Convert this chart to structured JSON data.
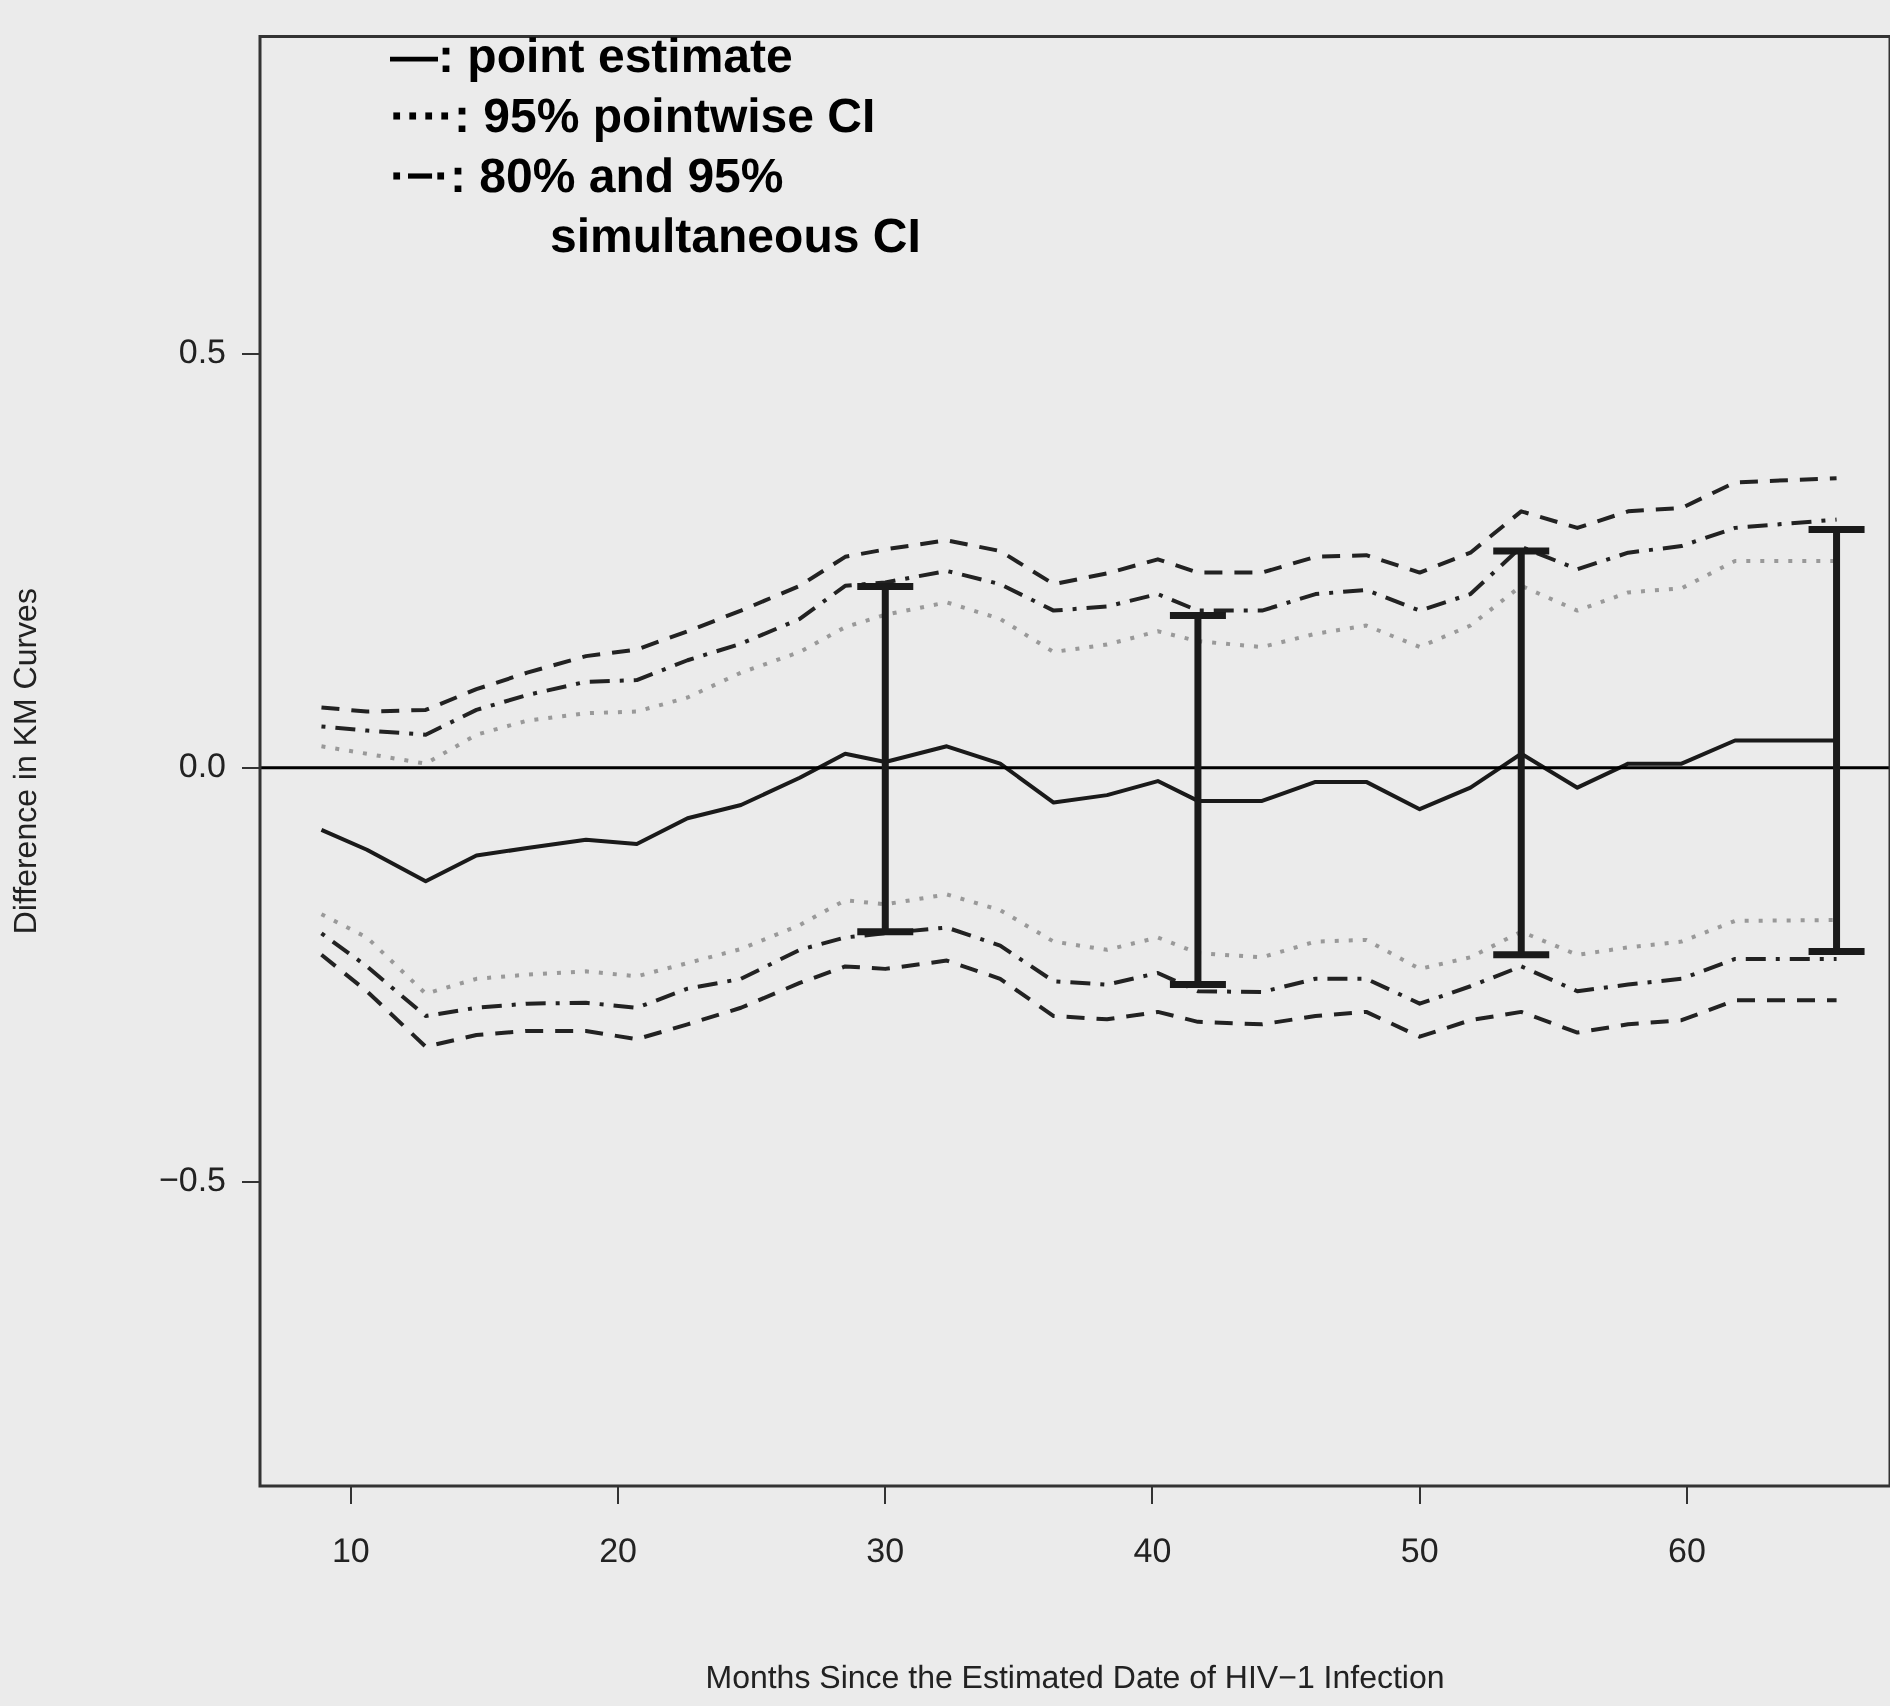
{
  "chart_data": {
    "type": "line",
    "xlabel": "Months Since the Estimated Date of HIV−1 Infection",
    "ylabel": "Difference in KM Curves",
    "x": [
      8.9,
      10.6,
      12.8,
      14.7,
      16.6,
      18.8,
      20.7,
      22.6,
      24.6,
      26.8,
      28.5,
      30.0,
      32.3,
      34.3,
      36.3,
      38.3,
      40.2,
      41.7,
      44.1,
      46.1,
      48.0,
      50.0,
      51.9,
      53.8,
      55.9,
      57.8,
      59.8,
      61.8,
      65.6
    ],
    "xlim": [
      6.6,
      67.6
    ],
    "xticks": [
      10,
      20,
      30,
      40,
      50,
      60
    ],
    "ylim": [
      -0.868,
      0.884
    ],
    "yticks": [
      {
        "value": -0.5,
        "label": "−0.5"
      },
      {
        "value": 0,
        "label": "0.0"
      },
      0.5
    ],
    "grid": false,
    "legend": false,
    "marker": "none",
    "ref_lines": [
      {
        "axis": "y",
        "value": 0,
        "color": "#000000",
        "line_style": "solid"
      }
    ],
    "annotations": [
      "—:  point estimate",
      "····: 95% pointwise CI",
      "·−·: 80% and 95% simultaneous CI"
    ],
    "series": [
      {
        "color": "#1a1a1a",
        "line_style": "solid",
        "values": [
          -0.075,
          -0.099,
          -0.137,
          -0.106,
          -0.097,
          -0.087,
          -0.092,
          -0.061,
          -0.045,
          -0.012,
          0.017,
          0.007,
          0.026,
          0.005,
          -0.042,
          -0.033,
          -0.016,
          -0.04,
          -0.04,
          -0.017,
          -0.017,
          -0.05,
          -0.024,
          0.017,
          -0.024,
          0.005,
          0.005,
          0.033,
          0.033
        ],
        "errors": [
          null,
          null,
          null,
          null,
          null,
          null,
          null,
          null,
          null,
          null,
          null,
          [
            -0.198,
            0.219
          ],
          null,
          null,
          null,
          null,
          null,
          [
            -0.262,
            0.184
          ],
          null,
          null,
          null,
          null,
          null,
          [
            -0.226,
            0.262
          ],
          null,
          null,
          null,
          null,
          [
            -0.222,
            0.288
          ]
        ]
      },
      {
        "color": "#999999",
        "line_style": "dotted",
        "values": [
          0.026,
          0.017,
          0.005,
          0.04,
          0.057,
          0.066,
          0.068,
          0.085,
          0.115,
          0.14,
          0.17,
          0.185,
          0.2,
          0.18,
          0.14,
          0.149,
          0.165,
          0.153,
          0.146,
          0.162,
          0.172,
          0.146,
          0.172,
          0.22,
          0.19,
          0.212,
          0.217,
          0.25,
          0.25
        ]
      },
      {
        "color": "#999999",
        "line_style": "dotted",
        "values": [
          -0.177,
          -0.205,
          -0.273,
          -0.255,
          -0.25,
          -0.246,
          -0.252,
          -0.236,
          -0.219,
          -0.19,
          -0.16,
          -0.165,
          -0.153,
          -0.172,
          -0.21,
          -0.22,
          -0.205,
          -0.224,
          -0.229,
          -0.21,
          -0.208,
          -0.243,
          -0.229,
          -0.198,
          -0.226,
          -0.217,
          -0.21,
          -0.185,
          -0.184
        ]
      },
      {
        "color": "#222222",
        "line_style": "dashdot",
        "values": [
          0.05,
          0.045,
          0.04,
          0.07,
          0.088,
          0.104,
          0.106,
          0.13,
          0.15,
          0.18,
          0.22,
          0.224,
          0.238,
          0.222,
          0.19,
          0.195,
          0.21,
          0.19,
          0.19,
          0.21,
          0.215,
          0.19,
          0.21,
          0.267,
          0.24,
          0.26,
          0.268,
          0.29,
          0.3
        ]
      },
      {
        "color": "#222222",
        "line_style": "dashdot",
        "values": [
          -0.2,
          -0.24,
          -0.3,
          -0.29,
          -0.285,
          -0.284,
          -0.29,
          -0.267,
          -0.255,
          -0.22,
          -0.205,
          -0.2,
          -0.193,
          -0.215,
          -0.258,
          -0.262,
          -0.248,
          -0.27,
          -0.271,
          -0.255,
          -0.255,
          -0.285,
          -0.264,
          -0.24,
          -0.27,
          -0.262,
          -0.255,
          -0.231,
          -0.231
        ]
      },
      {
        "color": "#222222",
        "line_style": "dashed",
        "values": [
          0.073,
          0.068,
          0.07,
          0.095,
          0.115,
          0.135,
          0.143,
          0.165,
          0.19,
          0.22,
          0.255,
          0.264,
          0.275,
          0.262,
          0.222,
          0.235,
          0.252,
          0.236,
          0.236,
          0.255,
          0.257,
          0.236,
          0.26,
          0.31,
          0.29,
          0.31,
          0.314,
          0.345,
          0.35
        ]
      },
      {
        "color": "#222222",
        "line_style": "dashed",
        "values": [
          -0.226,
          -0.27,
          -0.337,
          -0.323,
          -0.318,
          -0.318,
          -0.328,
          -0.31,
          -0.29,
          -0.26,
          -0.24,
          -0.243,
          -0.233,
          -0.255,
          -0.3,
          -0.304,
          -0.295,
          -0.307,
          -0.31,
          -0.3,
          -0.295,
          -0.325,
          -0.305,
          -0.295,
          -0.32,
          -0.31,
          -0.305,
          -0.281,
          -0.281
        ]
      }
    ]
  }
}
